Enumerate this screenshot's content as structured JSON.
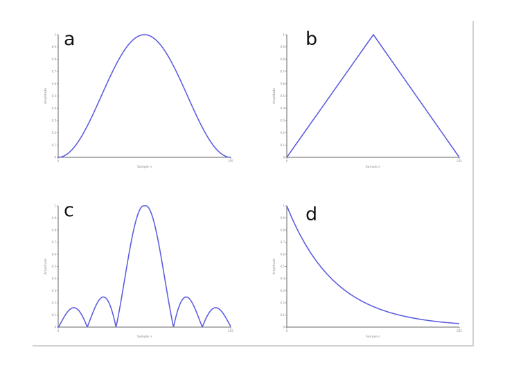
{
  "chart_data": [
    {
      "panel": "a",
      "type": "line",
      "xlabel": "Sample n",
      "ylabel": "Amplitude",
      "xlim": [
        0,
        255
      ],
      "ylim": [
        0,
        1
      ],
      "x_tick_labels": [
        "0",
        "255"
      ],
      "y_tick_labels": [
        "0",
        "0.1",
        "0.2",
        "0.3",
        "0.4",
        "0.5",
        "0.6",
        "0.7",
        "0.8",
        "0.9",
        "1"
      ],
      "series": [
        {
          "x": [
            0,
            16,
            32,
            48,
            64,
            80,
            96,
            112,
            128,
            144,
            160,
            176,
            192,
            208,
            224,
            240,
            255
          ],
          "y": [
            0,
            0.04,
            0.15,
            0.31,
            0.5,
            0.69,
            0.85,
            0.96,
            1.0,
            0.96,
            0.85,
            0.69,
            0.5,
            0.31,
            0.15,
            0.04,
            0
          ]
        }
      ]
    },
    {
      "panel": "b",
      "type": "line",
      "xlabel": "Sample n",
      "ylabel": "Amplitude",
      "xlim": [
        0,
        255
      ],
      "ylim": [
        0,
        1
      ],
      "x_tick_labels": [
        "0",
        "255"
      ],
      "y_tick_labels": [
        "0",
        "0.1",
        "0.2",
        "0.3",
        "0.4",
        "0.5",
        "0.6",
        "0.7",
        "0.8",
        "0.9",
        "1"
      ],
      "series": [
        {
          "x": [
            0,
            128,
            255
          ],
          "y": [
            0,
            1.0,
            0
          ]
        }
      ]
    },
    {
      "panel": "c",
      "type": "line",
      "xlabel": "Sample n",
      "ylabel": "Amplitude",
      "xlim": [
        0,
        255
      ],
      "ylim": [
        0,
        1
      ],
      "x_tick_labels": [
        "0",
        "255"
      ],
      "y_tick_labels": [
        "0",
        "0.1",
        "0.2",
        "0.3",
        "0.4",
        "0.5",
        "0.6",
        "0.7",
        "0.8",
        "0.9",
        "1"
      ],
      "series": [
        {
          "x": [
            0,
            10,
            21,
            31,
            42,
            52,
            63,
            73,
            84,
            94,
            105,
            115,
            128,
            141,
            151,
            162,
            172,
            183,
            193,
            204,
            214,
            225,
            235,
            245,
            255
          ],
          "y": [
            0,
            0.09,
            0.13,
            0.09,
            0,
            0.14,
            0.22,
            0.14,
            0,
            0.48,
            0.83,
            0.97,
            1.0,
            0.97,
            0.83,
            0.48,
            0,
            0.14,
            0.22,
            0.14,
            0,
            0.09,
            0.13,
            0.09,
            0
          ]
        }
      ]
    },
    {
      "panel": "d",
      "type": "line",
      "xlabel": "Sample n",
      "ylabel": "Amplitude",
      "xlim": [
        0,
        255
      ],
      "ylim": [
        0,
        1
      ],
      "x_tick_labels": [
        "0",
        "255"
      ],
      "y_tick_labels": [
        "0",
        "0.1",
        "0.2",
        "0.3",
        "0.4",
        "0.5",
        "0.6",
        "0.7",
        "0.8",
        "0.9",
        "1"
      ],
      "series": [
        {
          "x": [
            0,
            16,
            32,
            48,
            64,
            80,
            96,
            112,
            128,
            144,
            160,
            176,
            192,
            208,
            224,
            240,
            255
          ],
          "y": [
            1.0,
            0.8,
            0.64,
            0.51,
            0.41,
            0.33,
            0.26,
            0.21,
            0.17,
            0.13,
            0.11,
            0.09,
            0.07,
            0.055,
            0.045,
            0.035,
            0.03
          ]
        }
      ]
    }
  ],
  "colors": {
    "curve": "#5e5ee0",
    "frame": "#d2d2d2",
    "axis": "#666666"
  }
}
